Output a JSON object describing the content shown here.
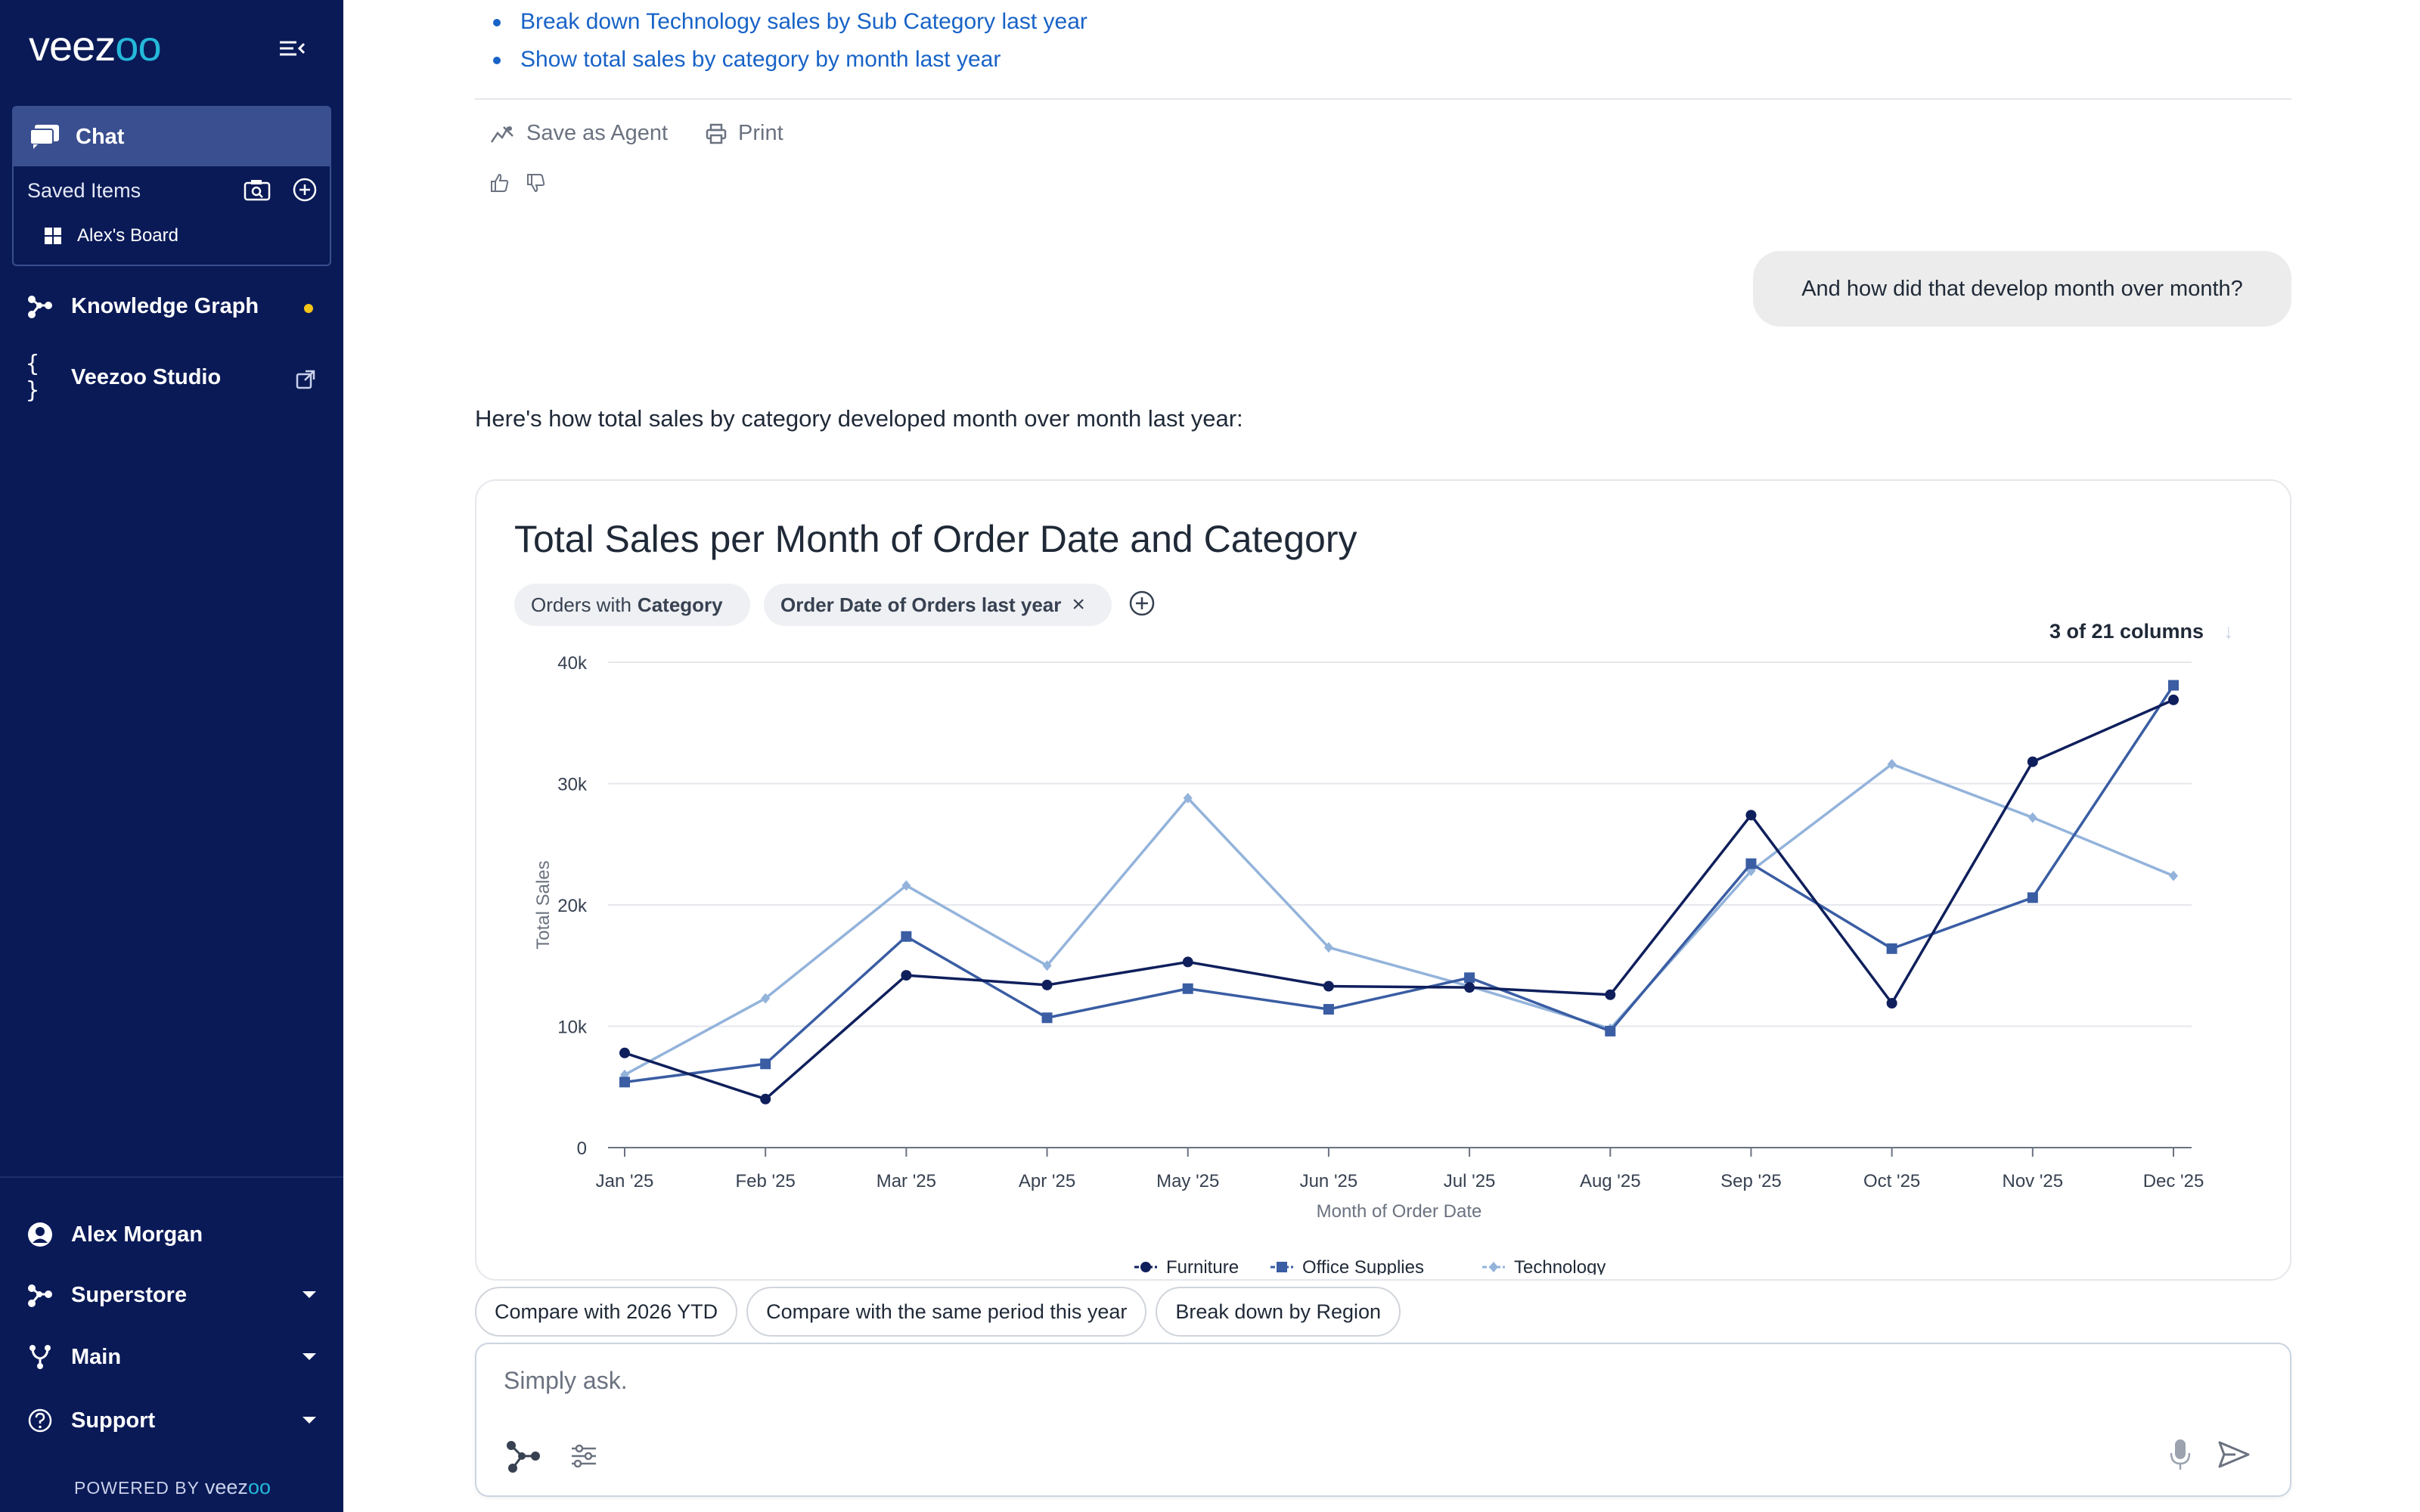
{
  "app": {
    "logo_main": "veez",
    "logo_accent": "oo",
    "powered_prefix": "POWERED BY",
    "powered_brand_main": "veez",
    "powered_brand_accent": "oo"
  },
  "sidebar": {
    "chat_label": "Chat",
    "saved_items_label": "Saved Items",
    "board_label": "Alex's Board",
    "knowledge_graph_label": "Knowledge Graph",
    "studio_label": "Veezoo Studio",
    "user_name": "Alex Morgan",
    "superstore_label": "Superstore",
    "main_label": "Main",
    "support_label": "Support",
    "status_dot_color": "#f5c518"
  },
  "conversation": {
    "links": [
      "Break down Technology sales by Sub Category last year",
      "Show total sales by category by month last year"
    ],
    "save_agent_label": "Save as Agent",
    "print_label": "Print",
    "user_message": "And how did that develop month over month?",
    "answer_text": "Here's how total sales by category developed month over month last year:"
  },
  "chart_card": {
    "chip_orders_prefix": "Orders with",
    "chip_orders_bold": "Category",
    "chip_date": "Order Date of Orders last year",
    "chip_date_close": "×",
    "columns_label": "3 of 21 columns",
    "columns_arrow": "↓"
  },
  "chart_data": {
    "type": "line",
    "title": "Total Sales per Month of Order Date and Category",
    "xlabel": "Month of Order Date",
    "ylabel": "Total Sales",
    "categories": [
      "Jan '25",
      "Feb '25",
      "Mar '25",
      "Apr '25",
      "May '25",
      "Jun '25",
      "Jul '25",
      "Aug '25",
      "Sep '25",
      "Oct '25",
      "Nov '25",
      "Dec '25"
    ],
    "ylim": [
      0,
      40000
    ],
    "yticks": [
      0,
      10000,
      20000,
      30000,
      40000
    ],
    "ytick_labels": [
      "0",
      "10k",
      "20k",
      "30k",
      "40k"
    ],
    "grid": true,
    "legend_position": "bottom",
    "series": [
      {
        "name": "Furniture",
        "color": "#0f1f5c",
        "marker": "circle",
        "values": [
          7800,
          4000,
          14200,
          13400,
          15300,
          13300,
          13200,
          12600,
          27400,
          11900,
          31800,
          36900
        ]
      },
      {
        "name": "Office Supplies",
        "color": "#3a5da3",
        "marker": "square",
        "values": [
          5400,
          6900,
          17400,
          10700,
          13100,
          11400,
          14000,
          9600,
          23400,
          16400,
          20600,
          38100
        ]
      },
      {
        "name": "Technology",
        "color": "#93b3db",
        "marker": "diamond",
        "values": [
          6000,
          12300,
          21600,
          15000,
          28800,
          16500,
          13300,
          9800,
          22800,
          31600,
          27200,
          22400
        ]
      }
    ]
  },
  "suggestions": [
    "Compare with 2026 YTD",
    "Compare with the same period this year",
    "Break down by Region"
  ],
  "input": {
    "placeholder": "Simply ask."
  }
}
